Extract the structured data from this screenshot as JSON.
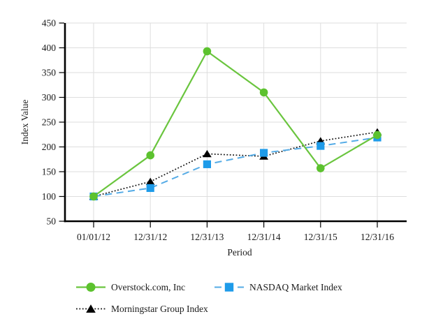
{
  "chart_data": {
    "type": "line",
    "title": "",
    "xlabel": "Period",
    "ylabel": "Index Value",
    "x_categories": [
      "01/01/12",
      "12/31/12",
      "12/31/13",
      "12/31/14",
      "12/31/15",
      "12/31/16"
    ],
    "ylim": [
      50,
      450
    ],
    "ytick_step": 50,
    "grid": true,
    "legend_position": "bottom",
    "series": [
      {
        "name": "Overstock.com, Inc",
        "marker": "circle",
        "line_style": "solid",
        "marker_color": "#5CC22E",
        "line_color": "#6AC53E",
        "values": [
          100,
          183,
          393,
          310,
          157,
          224
        ]
      },
      {
        "name": "NASDAQ Market Index",
        "marker": "square",
        "line_style": "dashed",
        "marker_color": "#1E9BE9",
        "line_color": "#54ABE6",
        "values": [
          100,
          117,
          165,
          188,
          202,
          219
        ]
      },
      {
        "name": "Morningstar Group Index",
        "marker": "triangle",
        "line_style": "dotted",
        "marker_color": "#000000",
        "line_color": "#111111",
        "values": [
          100,
          130,
          186,
          181,
          212,
          230
        ]
      }
    ],
    "colors": {
      "gridline": "#DEDEDE",
      "axis": "#000000",
      "tick": "#000000",
      "text": "#1A1A1A"
    }
  }
}
